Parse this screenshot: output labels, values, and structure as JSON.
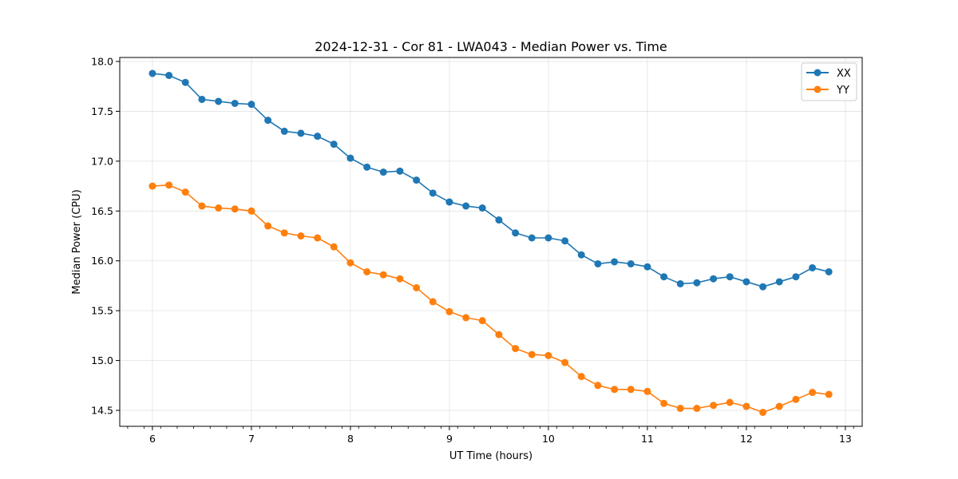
{
  "chart_data": {
    "type": "line",
    "title": "2024-12-31 - Cor 81 - LWA043 - Median Power vs. Time",
    "xlabel": "UT Time (hours)",
    "ylabel": "Median Power (CPU)",
    "xlim": [
      5.67,
      13.17
    ],
    "ylim": [
      14.34,
      18.04
    ],
    "xticks": [
      "6",
      "7",
      "8",
      "9",
      "10",
      "11",
      "12",
      "13"
    ],
    "yticks": [
      "14.5",
      "15.0",
      "15.5",
      "16.0",
      "16.5",
      "17.0",
      "17.5",
      "18.0"
    ],
    "grid": true,
    "legend_position": "top-right",
    "x": [
      6.0,
      6.167,
      6.333,
      6.5,
      6.667,
      6.833,
      7.0,
      7.167,
      7.333,
      7.5,
      7.667,
      7.833,
      8.0,
      8.167,
      8.333,
      8.5,
      8.667,
      8.833,
      9.0,
      9.167,
      9.333,
      9.5,
      9.667,
      9.833,
      10.0,
      10.167,
      10.333,
      10.5,
      10.667,
      10.833,
      11.0,
      11.167,
      11.333,
      11.5,
      11.667,
      11.833,
      12.0,
      12.167,
      12.333,
      12.5,
      12.667,
      12.833
    ],
    "series": [
      {
        "name": "XX",
        "color": "#1f77b4",
        "values": [
          17.88,
          17.86,
          17.79,
          17.62,
          17.6,
          17.58,
          17.57,
          17.41,
          17.3,
          17.28,
          17.25,
          17.17,
          17.03,
          16.94,
          16.89,
          16.9,
          16.81,
          16.68,
          16.59,
          16.55,
          16.53,
          16.41,
          16.28,
          16.23,
          16.23,
          16.2,
          16.06,
          15.97,
          15.99,
          15.97,
          15.94,
          15.84,
          15.77,
          15.78,
          15.82,
          15.84,
          15.79,
          15.74,
          15.79,
          15.84,
          15.93,
          15.89
        ]
      },
      {
        "name": "YY",
        "color": "#ff7f0e",
        "values": [
          16.75,
          16.76,
          16.69,
          16.55,
          16.53,
          16.52,
          16.5,
          16.35,
          16.28,
          16.25,
          16.23,
          16.14,
          15.98,
          15.89,
          15.86,
          15.82,
          15.73,
          15.59,
          15.49,
          15.43,
          15.4,
          15.26,
          15.12,
          15.06,
          15.05,
          14.98,
          14.84,
          14.75,
          14.71,
          14.71,
          14.69,
          14.57,
          14.52,
          14.52,
          14.55,
          14.58,
          14.54,
          14.48,
          14.54,
          14.61,
          14.68,
          14.66
        ]
      }
    ]
  }
}
